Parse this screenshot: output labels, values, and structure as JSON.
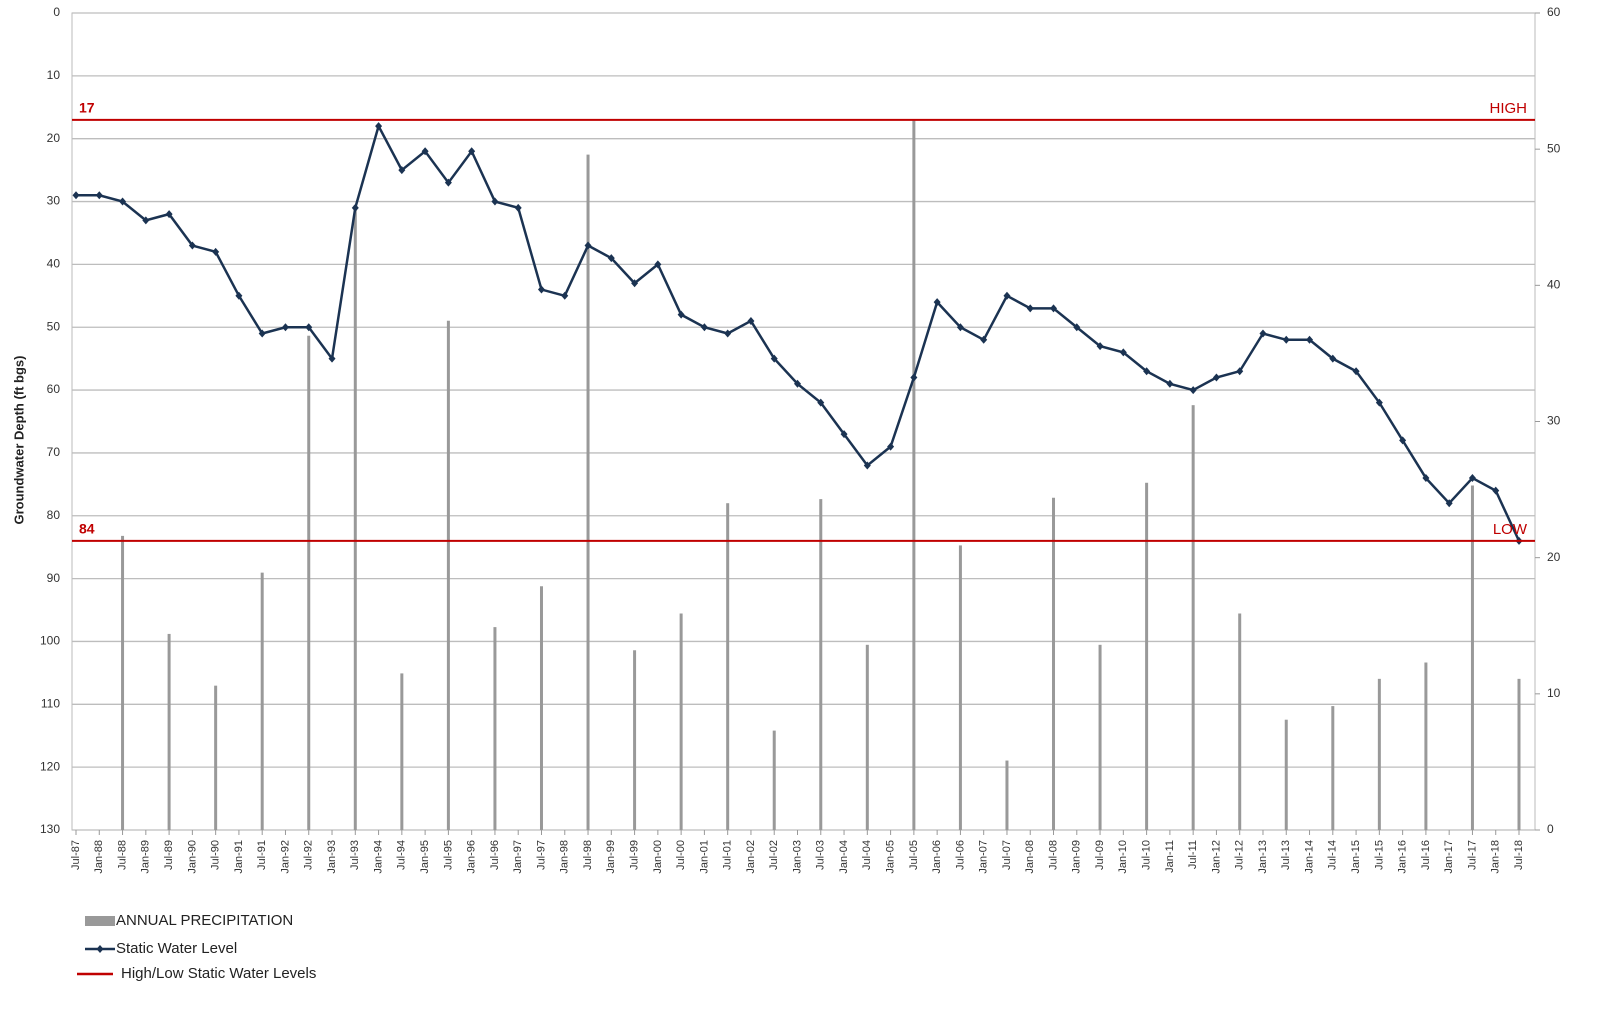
{
  "chart_data": {
    "type": "combo",
    "y_axis_label": "Groundwater Depth (ft bgs)",
    "categories": [
      "Jul-87",
      "Jan-88",
      "Jul-88",
      "Jan-89",
      "Jul-89",
      "Jan-90",
      "Jul-90",
      "Jan-91",
      "Jul-91",
      "Jan-92",
      "Jul-92",
      "Jan-93",
      "Jul-93",
      "Jan-94",
      "Jul-94",
      "Jan-95",
      "Jul-95",
      "Jan-96",
      "Jul-96",
      "Jan-97",
      "Jul-97",
      "Jan-98",
      "Jul-98",
      "Jan-99",
      "Jul-99",
      "Jan-00",
      "Jul-00",
      "Jan-01",
      "Jul-01",
      "Jan-02",
      "Jul-02",
      "Jan-03",
      "Jul-03",
      "Jan-04",
      "Jul-04",
      "Jan-05",
      "Jul-05",
      "Jan-06",
      "Jul-06",
      "Jan-07",
      "Jul-07",
      "Jan-08",
      "Jul-08",
      "Jan-09",
      "Jul-09",
      "Jan-10",
      "Jul-10",
      "Jan-11",
      "Jul-11",
      "Jan-12",
      "Jul-12",
      "Jan-13",
      "Jul-13",
      "Jan-14",
      "Jul-14",
      "Jan-15",
      "Jul-15",
      "Jan-16",
      "Jul-16",
      "Jan-17",
      "Jul-17",
      "Jan-18",
      "Jul-18"
    ],
    "series": [
      {
        "name": "ANNUAL PRECIPITATION",
        "type": "bar",
        "axis": "y2",
        "color": "#999999",
        "values": [
          null,
          null,
          21.6,
          null,
          14.4,
          null,
          10.6,
          null,
          18.9,
          null,
          36.3,
          null,
          45.9,
          null,
          11.5,
          null,
          37.4,
          null,
          14.9,
          null,
          17.9,
          null,
          49.6,
          null,
          13.2,
          null,
          15.9,
          null,
          24,
          null,
          7.3,
          null,
          24.3,
          null,
          13.6,
          null,
          52.1,
          null,
          20.9,
          null,
          5.1,
          null,
          24.4,
          null,
          13.6,
          null,
          25.5,
          null,
          31.2,
          null,
          15.9,
          null,
          8.1,
          null,
          9.1,
          null,
          11.1,
          null,
          12.3,
          null,
          25.3,
          null,
          11.1
        ]
      },
      {
        "name": "Static Water Level",
        "type": "line",
        "color": "#1b3352",
        "values": [
          29,
          29,
          30,
          33,
          32,
          37,
          38,
          45,
          51,
          50,
          50,
          55,
          31,
          18,
          25,
          22,
          27,
          22,
          30,
          31,
          44,
          45,
          37,
          39,
          43,
          40,
          48,
          50,
          51,
          49,
          55,
          59,
          62,
          67,
          72,
          69,
          58,
          46,
          50,
          52,
          45,
          47,
          47,
          50,
          53,
          54,
          57,
          59,
          60,
          58,
          57,
          51,
          52,
          52,
          55,
          57,
          62,
          68,
          74,
          78,
          74,
          76,
          84
        ]
      }
    ],
    "reference_lines": [
      {
        "value": 17,
        "name": "HIGH",
        "color": "#c00000"
      },
      {
        "value": 84,
        "name": "LOW",
        "color": "#c00000"
      }
    ],
    "reference_legend": "High/Low Static Water Levels",
    "ylim": [
      0,
      130
    ],
    "y_inverted": true,
    "yticks": [
      0,
      10,
      20,
      30,
      40,
      50,
      60,
      70,
      80,
      90,
      100,
      110,
      120,
      130
    ],
    "y2lim": [
      0,
      60
    ],
    "y2ticks": [
      0,
      10,
      20,
      30,
      40,
      50,
      60
    ],
    "grid": true
  }
}
